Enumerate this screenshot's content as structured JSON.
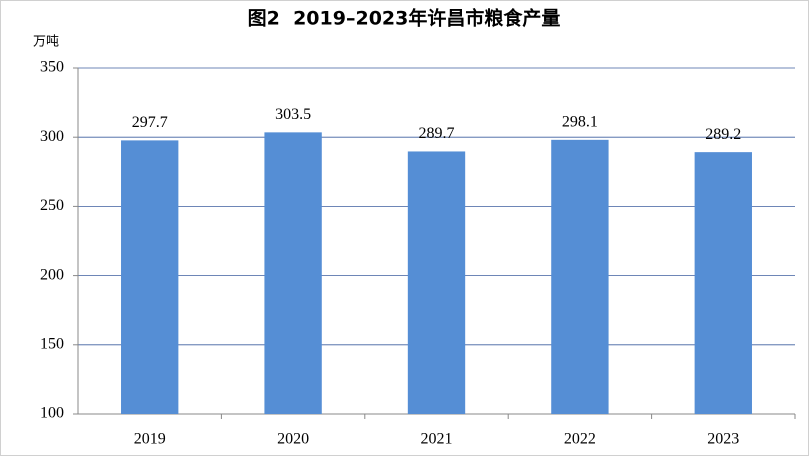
{
  "chart_data": {
    "type": "bar",
    "title": "图2  2019–2023年许昌市粮食产量",
    "y_label": "万吨",
    "categories": [
      "2019",
      "2020",
      "2021",
      "2022",
      "2023"
    ],
    "values": [
      297.7,
      303.5,
      289.7,
      298.1,
      289.2
    ],
    "color": "#558ed5",
    "ylim": [
      100,
      350
    ],
    "yticks": [
      100,
      150,
      200,
      250,
      300,
      350
    ],
    "grid": true
  }
}
